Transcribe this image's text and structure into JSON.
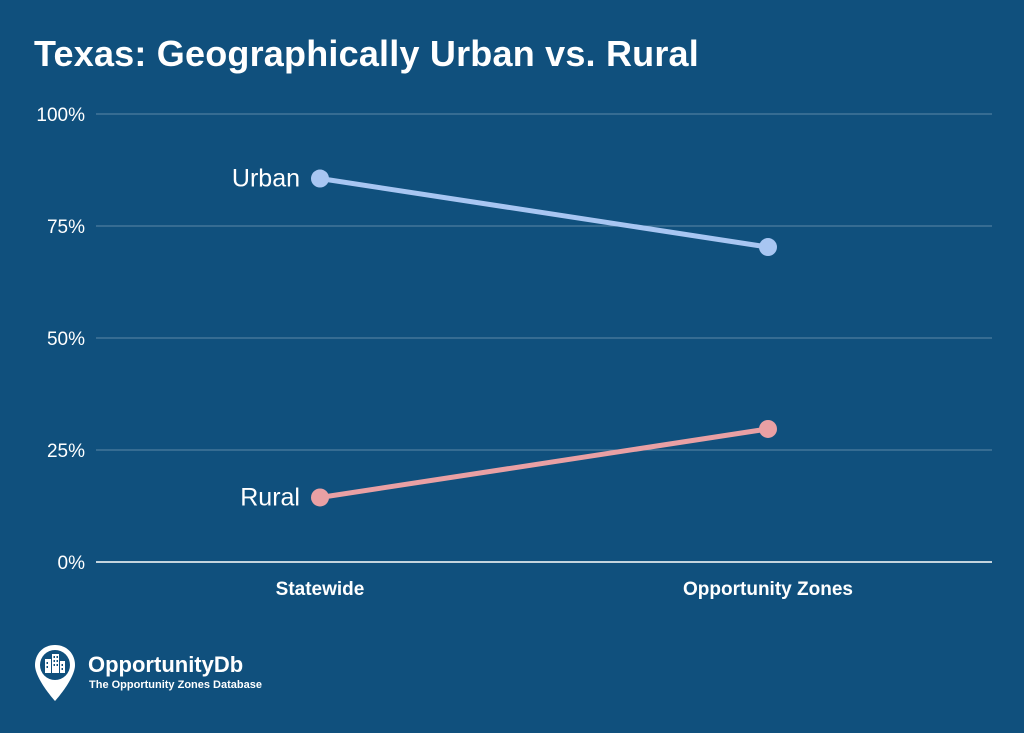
{
  "chart_data": {
    "type": "line",
    "title": "Texas: Geographically Urban vs. Rural",
    "categories": [
      "Statewide",
      "Opportunity Zones"
    ],
    "series": [
      {
        "name": "Urban",
        "values": [
          85.6,
          70.3
        ],
        "color": "#a8c6f2"
      },
      {
        "name": "Rural",
        "values": [
          14.4,
          29.7
        ],
        "color": "#e9a0a4"
      }
    ],
    "y_ticks": [
      "0%",
      "25%",
      "50%",
      "75%",
      "100%"
    ],
    "ylim": [
      0,
      100
    ],
    "xlabel": "",
    "ylabel": "",
    "grid": true,
    "legend": "labels at first point"
  },
  "brand": {
    "name": "OpportunityDb",
    "tagline": "The Opportunity Zones Database",
    "icon": "building-pin-icon"
  },
  "colors": {
    "background": "#10507d",
    "grid": "#5b87a8",
    "axis": "#ffffff"
  }
}
